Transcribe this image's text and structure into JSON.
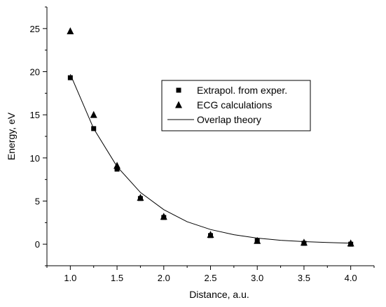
{
  "chart_data": {
    "type": "scatter",
    "xlabel": "Distance, a.u.",
    "ylabel": "Energy, eV",
    "xlim": [
      0.75,
      4.25
    ],
    "ylim": [
      -2.5,
      27.5
    ],
    "x_ticks": [
      "1.0",
      "1.5",
      "2.0",
      "2.5",
      "3.0",
      "3.5",
      "4.0"
    ],
    "y_ticks": [
      "0",
      "5",
      "10",
      "15",
      "20",
      "25"
    ],
    "legend_position": "upper-right (inside plot)",
    "series": [
      {
        "name": "Extrapol. from exper.",
        "marker": "square",
        "x": [
          1.0,
          1.25,
          1.5,
          1.75,
          2.0,
          2.5,
          3.0,
          3.5,
          4.0
        ],
        "y": [
          19.3,
          13.4,
          8.7,
          5.3,
          3.1,
          1.0,
          0.4,
          0.1,
          0.0
        ]
      },
      {
        "name": "ECG calculations",
        "marker": "triangle",
        "x": [
          1.0,
          1.25,
          1.5,
          1.75,
          2.0,
          2.5,
          3.0,
          3.5,
          4.0
        ],
        "y": [
          24.7,
          15.0,
          9.1,
          5.4,
          3.2,
          1.1,
          0.4,
          0.2,
          0.1
        ]
      },
      {
        "name": "Overlap theory",
        "marker": "line",
        "x": [
          1.0,
          1.25,
          1.5,
          1.75,
          2.0,
          2.25,
          2.5,
          2.75,
          3.0,
          3.25,
          3.5,
          3.75,
          4.0
        ],
        "y": [
          19.7,
          13.4,
          9.0,
          6.0,
          4.0,
          2.6,
          1.7,
          1.1,
          0.7,
          0.45,
          0.3,
          0.2,
          0.12
        ]
      }
    ]
  }
}
